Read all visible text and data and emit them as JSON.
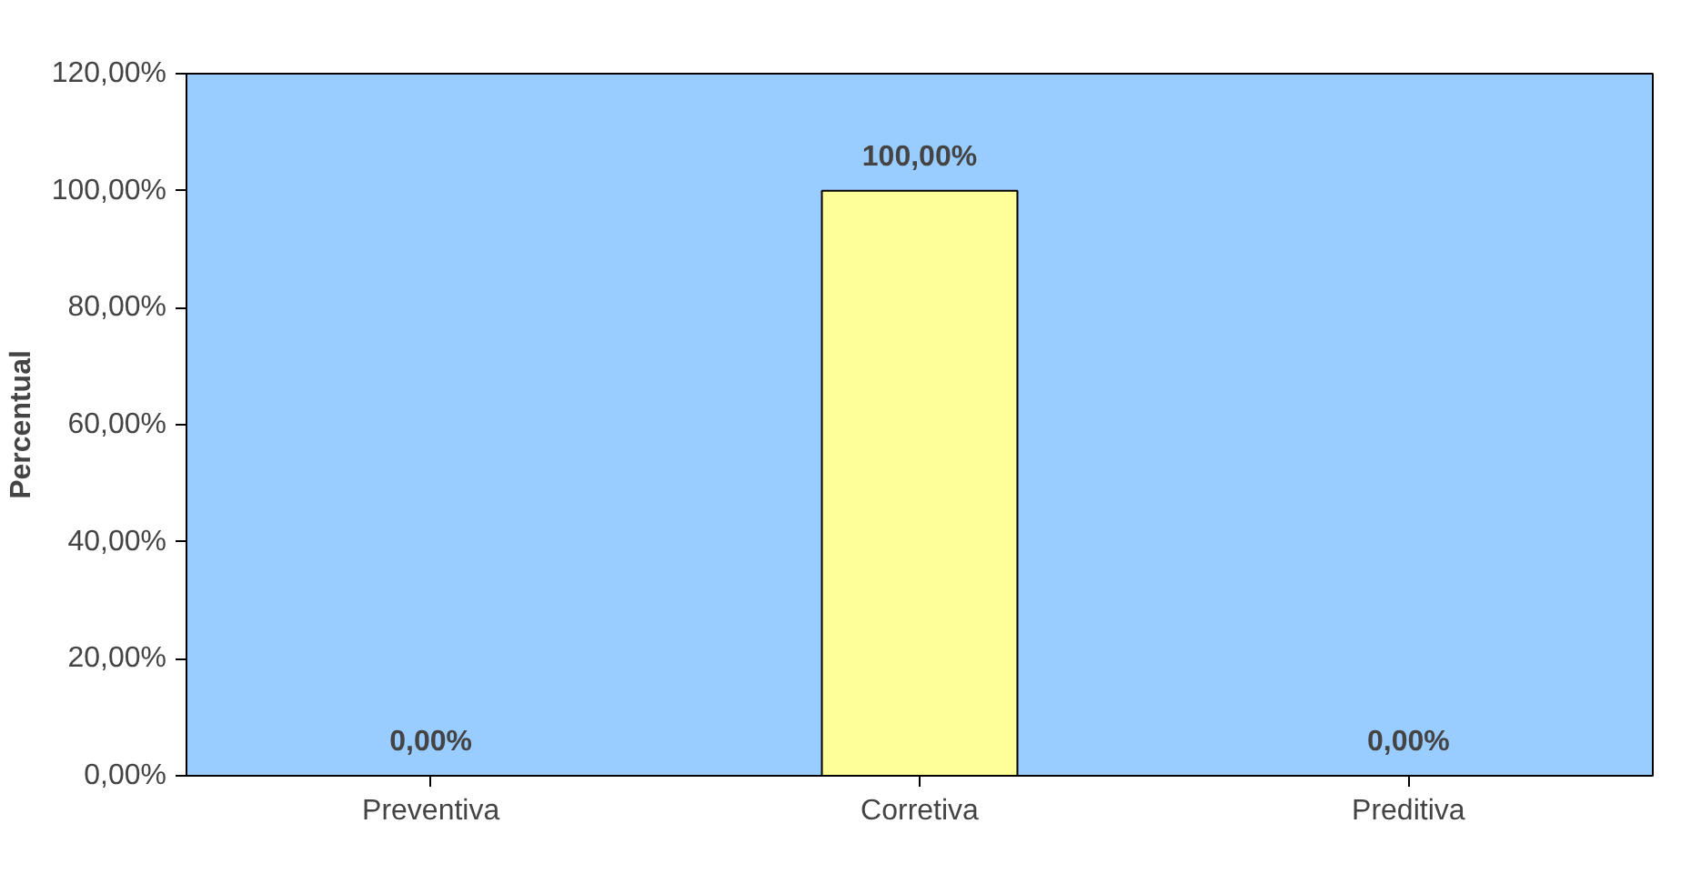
{
  "chart_data": {
    "type": "bar",
    "ylabel": "Percentual",
    "categories": [
      "Preventiva",
      "Corretiva",
      "Preditiva"
    ],
    "series": [
      {
        "color": "#ffff99",
        "values": [
          0,
          100,
          0
        ],
        "value_labels": [
          "0,00%",
          "100,00%",
          "0,00%"
        ]
      }
    ],
    "ylim": [
      0,
      120
    ],
    "yticks": [
      {
        "value": 0,
        "label": "0,00%"
      },
      {
        "value": 20,
        "label": "20,00%"
      },
      {
        "value": 40,
        "label": "40,00%"
      },
      {
        "value": 60,
        "label": "60,00%"
      },
      {
        "value": 80,
        "label": "80,00%"
      },
      {
        "value": 100,
        "label": "100,00%"
      },
      {
        "value": 120,
        "label": "120,00%"
      }
    ],
    "grid": false
  }
}
